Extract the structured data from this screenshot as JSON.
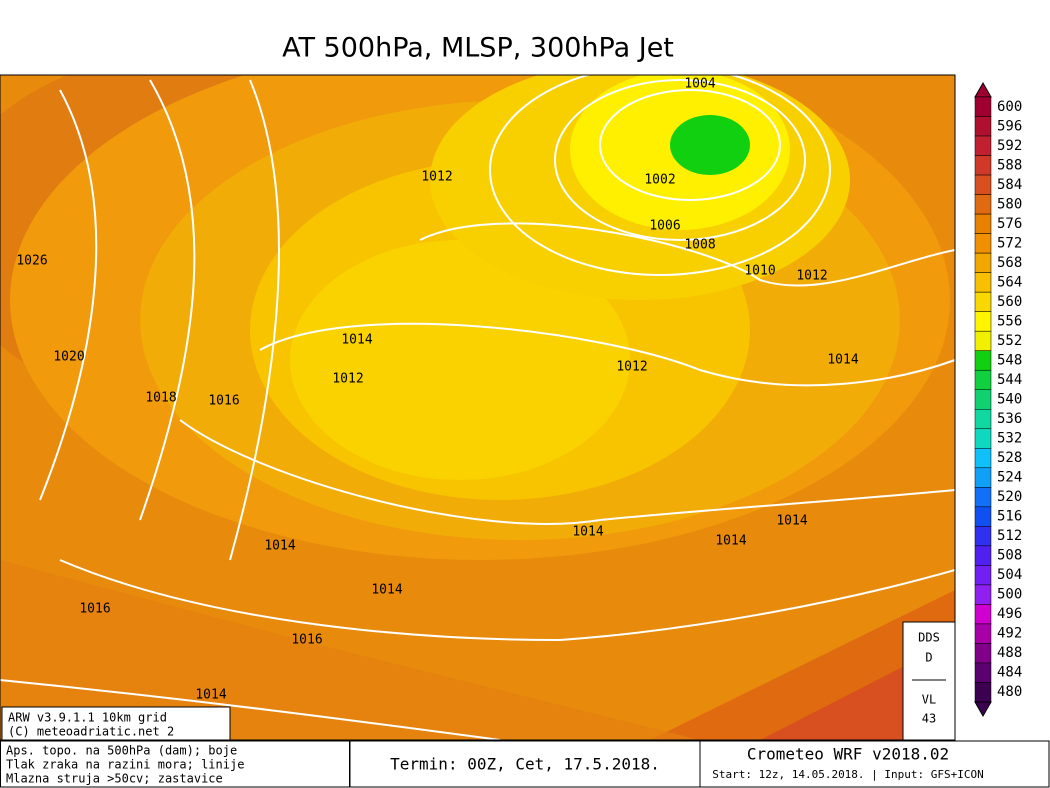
{
  "title": "AT 500hPa, MLSP, 300hPa Jet",
  "isobar_labels": [
    1004,
    1012,
    1002,
    1006,
    1008,
    1010,
    1012,
    1026,
    1020,
    1014,
    1014,
    1012,
    1012,
    1018,
    1016,
    1014,
    1014,
    1014,
    1014,
    1014,
    1016,
    1016,
    1014
  ],
  "colorbar": {
    "levels": [
      600,
      596,
      592,
      588,
      584,
      580,
      576,
      572,
      568,
      564,
      560,
      556,
      552,
      548,
      544,
      540,
      536,
      532,
      528,
      524,
      520,
      516,
      512,
      508,
      504,
      500,
      496,
      492,
      488,
      484,
      480
    ],
    "colors": [
      "#a00030",
      "#b01030",
      "#c02030",
      "#d03828",
      "#d85020",
      "#e06a10",
      "#e88000",
      "#f09000",
      "#f0a800",
      "#f8c000",
      "#f8d800",
      "#fff500",
      "#f0f000",
      "#10d010",
      "#10d040",
      "#10d070",
      "#10d8a0",
      "#10d8c0",
      "#10c0f8",
      "#10a0f8",
      "#1070f8",
      "#1050f0",
      "#3030f0",
      "#5020f0",
      "#7020f0",
      "#9020f0",
      "#d000d0",
      "#a800a8",
      "#80008a",
      "#5a0070",
      "#3c0050"
    ]
  },
  "model_box": {
    "line1": "ARW v3.9.1.1 10km grid",
    "line2": "(C) meteoadriatic.net 2"
  },
  "legend_text": [
    "Aps. topo. na 500hPa (dam); boje",
    "Tlak zraka na razini mora; linije",
    "Mlazna struja >50cv; zastavice"
  ],
  "termin": "Termin: 00Z, Cet, 17.5.2018.",
  "brand": {
    "title": "Crometeo WRF v2018.02",
    "start": "Start: 12z, 14.05.2018. | Input: GFS+ICON"
  },
  "dds_box": {
    "line1": "DDS",
    "line2": "D",
    "line3": "VL",
    "line4": "43"
  }
}
